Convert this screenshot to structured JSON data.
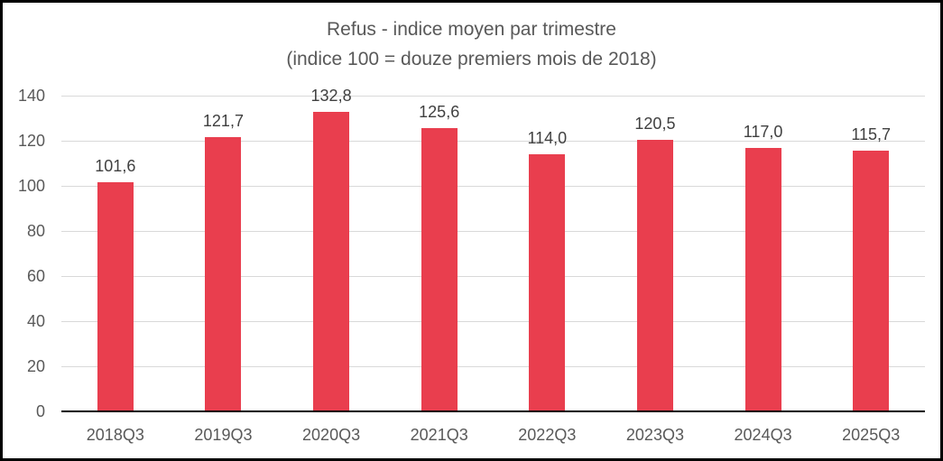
{
  "chart_data": {
    "type": "bar",
    "title": "Refus - indice moyen par trimestre",
    "subtitle": "(indice 100 = douze premiers mois de 2018)",
    "categories": [
      "2018Q3",
      "2019Q3",
      "2020Q3",
      "2021Q3",
      "2022Q3",
      "2023Q3",
      "2024Q3",
      "2025Q3"
    ],
    "values": [
      101.6,
      121.7,
      132.8,
      125.6,
      114.0,
      120.5,
      117.0,
      115.7
    ],
    "value_labels": [
      "101,6",
      "121,7",
      "132,8",
      "125,6",
      "114,0",
      "120,5",
      "117,0",
      "115,7"
    ],
    "xlabel": "",
    "ylabel": "",
    "ylim": [
      0,
      140
    ],
    "yticks": [
      0,
      20,
      40,
      60,
      80,
      100,
      120,
      140
    ],
    "grid": true,
    "legend": "none",
    "colors": {
      "bar": "#E93E4E",
      "gridline": "#D9D9D9",
      "axis_line": "#000000",
      "title": "#595959",
      "tick_labels": "#595959",
      "data_labels": "#404040",
      "frame_border": "#000000",
      "background": "#FFFFFF"
    }
  }
}
